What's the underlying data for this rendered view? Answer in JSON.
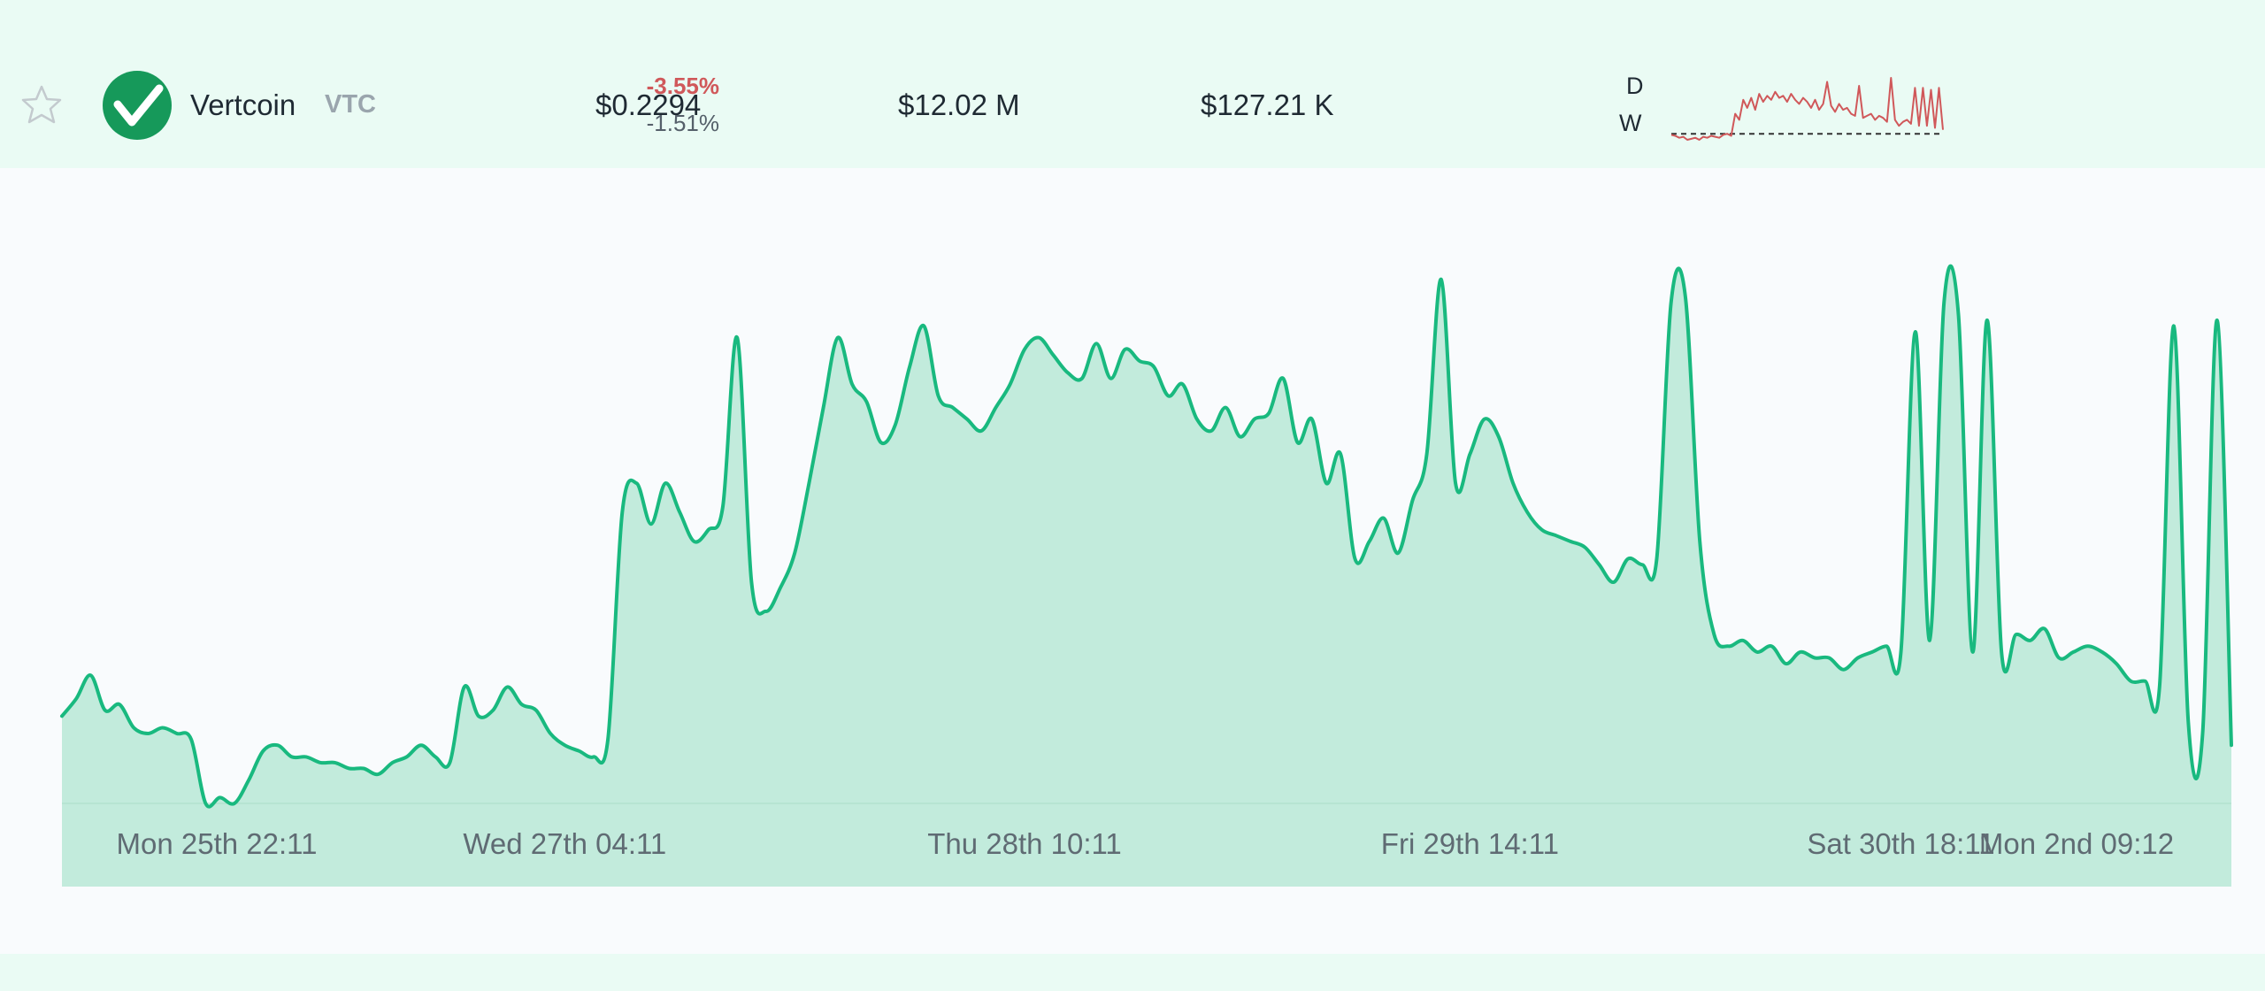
{
  "coin": {
    "name": "Vertcoin",
    "ticker": "VTC",
    "price": "$0.2294",
    "market_cap": "$12.02 M",
    "volume": "$127.21 K",
    "change_day": "-3.55%",
    "change_week": "-1.51%",
    "label_day": "D",
    "label_week": "W",
    "favorite_icon": "star-outline-icon",
    "logo_icon": "vertcoin-logo-icon"
  },
  "colors": {
    "line": "#19b97f",
    "fill": "#c2ebdc",
    "negative": "#d0585a",
    "logo": "#16995a",
    "sparkline": "#d0585a"
  },
  "sparkline": {
    "values": [
      0.55,
      0.5,
      0.4,
      0.45,
      0.3,
      0.35,
      0.4,
      0.3,
      0.45,
      0.4,
      0.5,
      0.45,
      0.4,
      0.55,
      0.6,
      0.5,
      1.6,
      1.3,
      2.3,
      1.9,
      2.4,
      1.8,
      2.6,
      2.2,
      2.5,
      2.3,
      2.7,
      2.4,
      2.5,
      2.2,
      2.6,
      2.3,
      2.1,
      2.4,
      2.2,
      1.9,
      2.3,
      1.8,
      2.1,
      3.2,
      2.0,
      1.7,
      2.1,
      1.8,
      1.9,
      1.6,
      1.5,
      3.0,
      1.4,
      1.5,
      1.6,
      1.3,
      1.5,
      1.4,
      1.2,
      3.4,
      1.3,
      1.0,
      1.2,
      1.3,
      1.1,
      2.9,
      1.0,
      2.9,
      1.0,
      2.8,
      0.9,
      2.9,
      0.8
    ],
    "reference": 0.6
  },
  "chart_data": {
    "type": "area",
    "title": "",
    "xlabel": "",
    "ylabel": "",
    "x_tick_labels": [
      "Mon 25th 22:11",
      "Wed 27th 04:11",
      "Thu 28th 10:11",
      "Fri 29th 14:11",
      "Sat 30th 18:11",
      "Mon 2nd 09:12"
    ],
    "x_tick_index": [
      3,
      35,
      67,
      98,
      128,
      164
    ],
    "ylim": [
      0,
      1
    ],
    "grid": false,
    "legend": "none",
    "values": [
      0.15,
      0.18,
      0.22,
      0.16,
      0.17,
      0.13,
      0.12,
      0.13,
      0.12,
      0.11,
      0.0,
      0.01,
      0.0,
      0.04,
      0.09,
      0.1,
      0.08,
      0.08,
      0.07,
      0.07,
      0.06,
      0.06,
      0.05,
      0.07,
      0.08,
      0.1,
      0.08,
      0.07,
      0.2,
      0.15,
      0.16,
      0.2,
      0.17,
      0.16,
      0.12,
      0.1,
      0.09,
      0.08,
      0.11,
      0.5,
      0.55,
      0.48,
      0.55,
      0.5,
      0.45,
      0.47,
      0.51,
      0.8,
      0.38,
      0.33,
      0.37,
      0.43,
      0.55,
      0.68,
      0.8,
      0.72,
      0.69,
      0.62,
      0.65,
      0.75,
      0.82,
      0.7,
      0.68,
      0.66,
      0.64,
      0.68,
      0.72,
      0.78,
      0.8,
      0.77,
      0.74,
      0.73,
      0.79,
      0.73,
      0.78,
      0.76,
      0.75,
      0.7,
      0.72,
      0.66,
      0.64,
      0.68,
      0.63,
      0.66,
      0.67,
      0.73,
      0.62,
      0.66,
      0.55,
      0.6,
      0.42,
      0.45,
      0.49,
      0.43,
      0.52,
      0.6,
      0.9,
      0.55,
      0.6,
      0.66,
      0.63,
      0.55,
      0.5,
      0.47,
      0.46,
      0.45,
      0.44,
      0.41,
      0.38,
      0.42,
      0.41,
      0.42,
      0.86,
      0.87,
      0.45,
      0.29,
      0.27,
      0.28,
      0.26,
      0.27,
      0.24,
      0.26,
      0.25,
      0.25,
      0.23,
      0.25,
      0.26,
      0.27,
      0.26,
      0.81,
      0.28,
      0.86,
      0.84,
      0.26,
      0.83,
      0.26,
      0.29,
      0.28,
      0.3,
      0.25,
      0.26,
      0.27,
      0.26,
      0.24,
      0.21,
      0.21,
      0.2,
      0.82,
      0.14,
      0.12,
      0.83,
      0.1
    ]
  }
}
